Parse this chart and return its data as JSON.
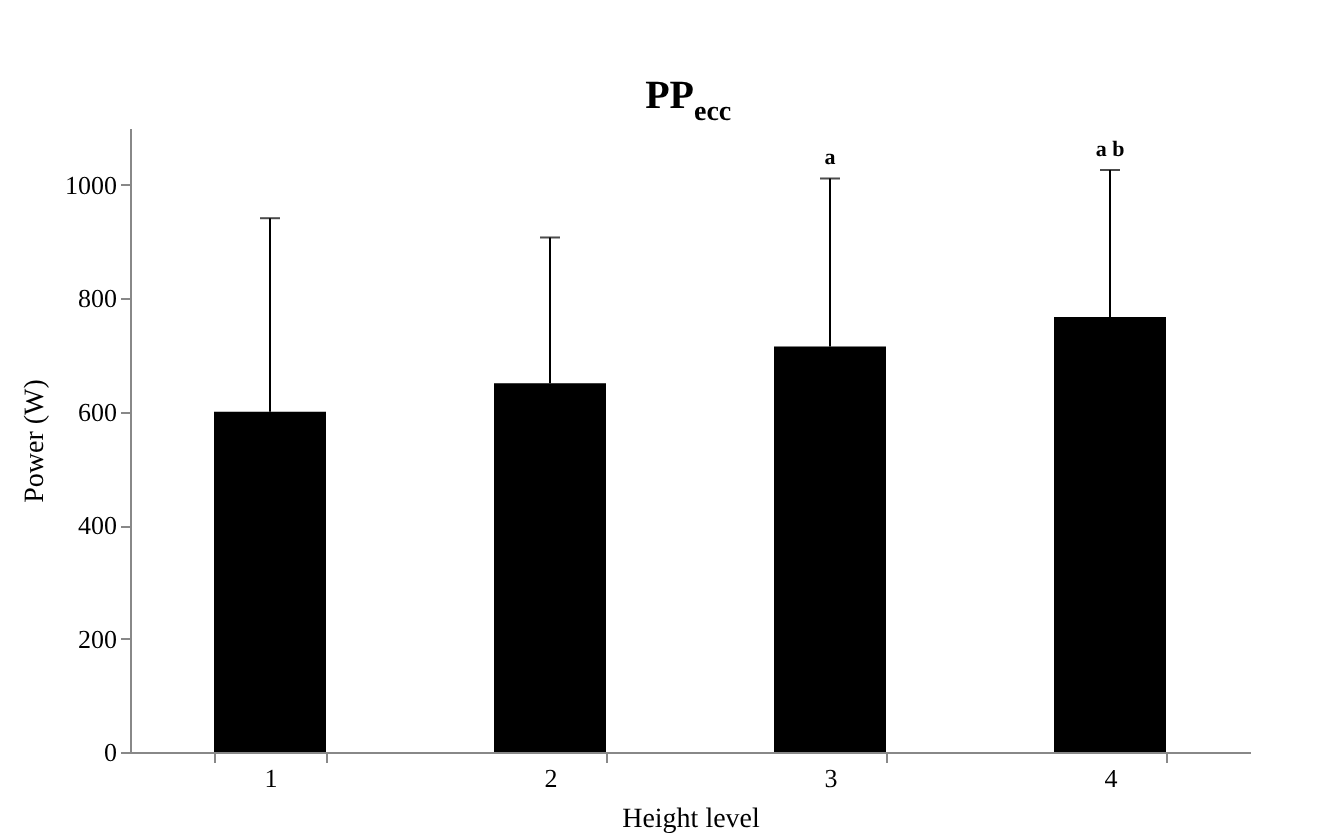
{
  "chart_data": {
    "type": "bar",
    "title": "PP$_{ecc}$",
    "xlabel": "Height level",
    "ylabel": "Power (W)",
    "categories": [
      "1",
      "2",
      "3",
      "4"
    ],
    "values": [
      600,
      650,
      715,
      767
    ],
    "errors": [
      [
        600,
        941
      ],
      [
        650,
        907
      ],
      [
        715,
        1011
      ],
      [
        767,
        1026
      ]
    ],
    "color": "#000000",
    "ylim": [
      0,
      1100
    ],
    "yticks": [
      0,
      200,
      400,
      600,
      800,
      1000
    ],
    "grid": false,
    "annotations": [
      {
        "text": "a",
        "x": "3",
        "y": 1011
      },
      {
        "text": "a b",
        "x": "4",
        "y": 1026
      }
    ]
  }
}
